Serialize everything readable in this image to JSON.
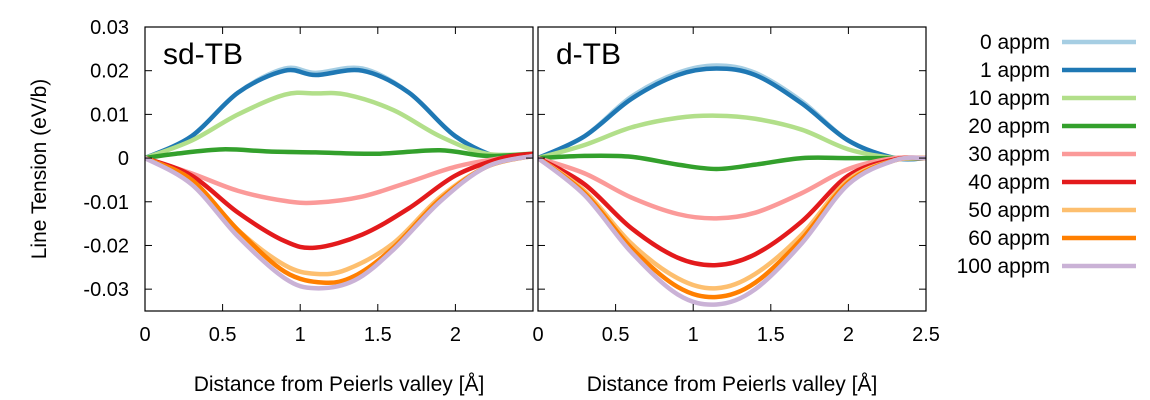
{
  "chart_data": {
    "type": "line",
    "ylabel": "Line Tension (eV/b)",
    "ylim": [
      -0.035,
      0.03
    ],
    "yticks": [
      "0.03",
      "0.02",
      "0.01",
      "0",
      "-0.01",
      "-0.02",
      "-0.03"
    ],
    "ytick_values": [
      0.03,
      0.02,
      0.01,
      0,
      -0.01,
      -0.02,
      -0.03
    ],
    "legend_position": "right",
    "legend": [
      {
        "name": "0 appm",
        "color": "#a6cee3"
      },
      {
        "name": "1 appm",
        "color": "#1f78b4"
      },
      {
        "name": "10 appm",
        "color": "#b2df8a"
      },
      {
        "name": "20 appm",
        "color": "#33a02c"
      },
      {
        "name": "30 appm",
        "color": "#fb9a99"
      },
      {
        "name": "40 appm",
        "color": "#e31a1c"
      },
      {
        "name": "50 appm",
        "color": "#fdbf6f"
      },
      {
        "name": "60 appm",
        "color": "#ff7f00"
      },
      {
        "name": "100 appm",
        "color": "#cab2d6"
      }
    ],
    "panels": [
      {
        "title": "sd-TB",
        "xlabel": "Distance from Peierls valley [Å]",
        "xlim": [
          0,
          2.5
        ],
        "xticks": [
          "0",
          "0.5",
          "1",
          "1.5",
          "2"
        ],
        "xtick_values": [
          0,
          0.5,
          1,
          1.5,
          2
        ],
        "series": [
          {
            "color": "#a6cee3",
            "x": [
              0,
              0.3,
              0.6,
              0.9,
              1.1,
              1.4,
              1.7,
              2.0,
              2.3,
              2.5
            ],
            "y": [
              0,
              0.005,
              0.015,
              0.0205,
              0.0195,
              0.0205,
              0.015,
              0.005,
              0,
              0.001
            ]
          },
          {
            "color": "#1f78b4",
            "x": [
              0,
              0.3,
              0.6,
              0.9,
              1.1,
              1.4,
              1.7,
              2.0,
              2.3,
              2.5
            ],
            "y": [
              0,
              0.005,
              0.015,
              0.02,
              0.019,
              0.02,
              0.015,
              0.005,
              0,
              0.001
            ]
          },
          {
            "color": "#b2df8a",
            "x": [
              0,
              0.3,
              0.6,
              0.9,
              1.1,
              1.3,
              1.6,
              1.9,
              2.2,
              2.5
            ],
            "y": [
              0,
              0.004,
              0.01,
              0.0145,
              0.0148,
              0.0145,
              0.011,
              0.005,
              0.001,
              0.001
            ]
          },
          {
            "color": "#33a02c",
            "x": [
              0,
              0.2,
              0.5,
              0.8,
              1.1,
              1.5,
              1.9,
              2.2,
              2.5
            ],
            "y": [
              0,
              0.001,
              0.002,
              0.0015,
              0.0013,
              0.001,
              0.0018,
              0.0005,
              0.001
            ]
          },
          {
            "color": "#fb9a99",
            "x": [
              0,
              0.3,
              0.6,
              0.9,
              1.1,
              1.4,
              1.7,
              2.0,
              2.3,
              2.5
            ],
            "y": [
              0,
              -0.0035,
              -0.0075,
              -0.0098,
              -0.0102,
              -0.0088,
              -0.0055,
              -0.002,
              0,
              0.0005
            ]
          },
          {
            "color": "#e31a1c",
            "x": [
              0,
              0.3,
              0.6,
              0.9,
              1.1,
              1.4,
              1.7,
              2.0,
              2.3,
              2.5
            ],
            "y": [
              0,
              -0.004,
              -0.0125,
              -0.019,
              -0.0205,
              -0.0175,
              -0.0115,
              -0.004,
              0,
              0.001
            ]
          },
          {
            "color": "#fdbf6f",
            "x": [
              0,
              0.3,
              0.6,
              0.9,
              1.1,
              1.3,
              1.6,
              1.9,
              2.2,
              2.5
            ],
            "y": [
              0,
              -0.005,
              -0.0165,
              -0.0245,
              -0.0265,
              -0.0255,
              -0.0195,
              -0.009,
              -0.002,
              0.0005
            ]
          },
          {
            "color": "#ff7f00",
            "x": [
              0,
              0.3,
              0.6,
              0.9,
              1.15,
              1.35,
              1.6,
              1.9,
              2.2,
              2.5
            ],
            "y": [
              0,
              -0.005,
              -0.0165,
              -0.026,
              -0.0285,
              -0.027,
              -0.0205,
              -0.0095,
              -0.002,
              0.0005
            ]
          },
          {
            "color": "#cab2d6",
            "x": [
              0,
              0.3,
              0.6,
              0.9,
              1.1,
              1.35,
              1.6,
              1.9,
              2.2,
              2.5
            ],
            "y": [
              0,
              -0.006,
              -0.018,
              -0.0275,
              -0.0298,
              -0.028,
              -0.021,
              -0.01,
              -0.002,
              0.0005
            ]
          }
        ]
      },
      {
        "title": "d-TB",
        "xlabel": "Distance from Peierls valley [Å]",
        "xlim": [
          0,
          2.5
        ],
        "xticks": [
          "0",
          "0.5",
          "1",
          "1.5",
          "2",
          "2.5"
        ],
        "xtick_values": [
          0,
          0.5,
          1,
          1.5,
          2,
          2.5
        ],
        "series": [
          {
            "color": "#a6cee3",
            "x": [
              0,
              0.3,
              0.6,
              0.9,
              1.15,
              1.4,
              1.7,
              2.0,
              2.3,
              2.5
            ],
            "y": [
              0,
              0.005,
              0.014,
              0.0195,
              0.0212,
              0.0195,
              0.013,
              0.004,
              0,
              0
            ]
          },
          {
            "color": "#1f78b4",
            "x": [
              0,
              0.3,
              0.6,
              0.9,
              1.15,
              1.4,
              1.7,
              2.0,
              2.3,
              2.5
            ],
            "y": [
              0,
              0.005,
              0.0135,
              0.019,
              0.0205,
              0.019,
              0.0125,
              0.004,
              0,
              0
            ]
          },
          {
            "color": "#b2df8a",
            "x": [
              0,
              0.3,
              0.6,
              0.9,
              1.15,
              1.4,
              1.7,
              2.0,
              2.3,
              2.5
            ],
            "y": [
              0,
              0.003,
              0.007,
              0.0092,
              0.0097,
              0.009,
              0.0065,
              0.002,
              0,
              0
            ]
          },
          {
            "color": "#33a02c",
            "x": [
              0,
              0.3,
              0.6,
              0.9,
              1.15,
              1.4,
              1.7,
              2.0,
              2.3,
              2.5
            ],
            "y": [
              0,
              0.0005,
              0.0003,
              -0.0015,
              -0.0025,
              -0.0015,
              0,
              0,
              0,
              0
            ]
          },
          {
            "color": "#fb9a99",
            "x": [
              0,
              0.3,
              0.6,
              0.9,
              1.15,
              1.4,
              1.7,
              2.0,
              2.3,
              2.5
            ],
            "y": [
              0,
              -0.0035,
              -0.009,
              -0.0128,
              -0.0138,
              -0.0125,
              -0.008,
              -0.0025,
              0,
              0
            ]
          },
          {
            "color": "#e31a1c",
            "x": [
              0,
              0.3,
              0.6,
              0.9,
              1.15,
              1.4,
              1.7,
              2.0,
              2.3,
              2.5
            ],
            "y": [
              0,
              -0.006,
              -0.016,
              -0.0228,
              -0.0245,
              -0.022,
              -0.0145,
              -0.004,
              -0.0003,
              0
            ]
          },
          {
            "color": "#fdbf6f",
            "x": [
              0,
              0.3,
              0.6,
              0.9,
              1.15,
              1.4,
              1.7,
              2.0,
              2.3,
              2.5
            ],
            "y": [
              0,
              -0.0075,
              -0.0195,
              -0.0275,
              -0.0298,
              -0.0265,
              -0.0175,
              -0.005,
              -0.0005,
              0
            ]
          },
          {
            "color": "#ff7f00",
            "x": [
              0,
              0.3,
              0.6,
              0.9,
              1.15,
              1.4,
              1.7,
              2.0,
              2.3,
              2.5
            ],
            "y": [
              0,
              -0.008,
              -0.0205,
              -0.0295,
              -0.0318,
              -0.0285,
              -0.0185,
              -0.0055,
              -0.0005,
              0
            ]
          },
          {
            "color": "#cab2d6",
            "x": [
              0,
              0.3,
              0.6,
              0.9,
              1.15,
              1.4,
              1.7,
              2.0,
              2.3,
              2.5
            ],
            "y": [
              0,
              -0.0085,
              -0.0215,
              -0.0312,
              -0.0335,
              -0.03,
              -0.0195,
              -0.006,
              -0.0005,
              0
            ]
          }
        ]
      }
    ]
  }
}
